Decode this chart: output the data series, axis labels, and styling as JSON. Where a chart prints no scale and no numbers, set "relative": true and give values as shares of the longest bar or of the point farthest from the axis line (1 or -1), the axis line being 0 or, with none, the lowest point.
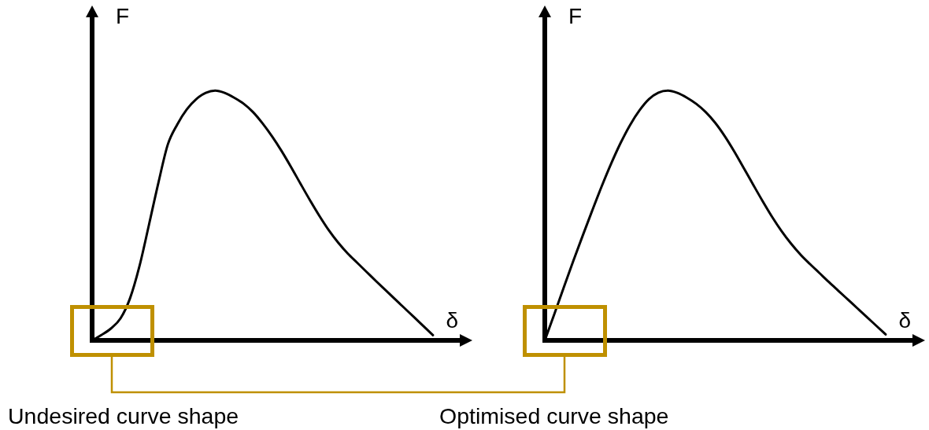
{
  "chart_data": [
    {
      "type": "line",
      "relative": true,
      "xlabel": "δ",
      "ylabel": "F",
      "tick_labels": false,
      "marker": "none",
      "line_style": "solid",
      "annotations": [
        "Undesired curve shape"
      ],
      "categories": [
        null,
        null,
        null,
        null,
        null,
        null,
        null,
        null,
        null,
        null,
        null,
        null,
        null,
        null,
        null,
        null,
        null,
        null,
        null,
        null,
        null,
        null,
        null,
        null,
        null,
        null,
        null,
        null,
        null,
        null,
        null,
        null,
        null,
        null,
        null,
        null,
        null,
        null,
        null,
        null
      ],
      "series": [
        {
          "color": "#000000",
          "values": [
            0,
            0.022,
            0.048,
            0.088,
            0.168,
            0.297,
            0.462,
            0.631,
            0.785,
            0.865,
            0.925,
            0.966,
            0.991,
            1,
            0.991,
            0.972,
            0.948,
            0.914,
            0.869,
            0.817,
            0.759,
            0.695,
            0.628,
            0.562,
            0.499,
            0.441,
            0.391,
            0.348,
            0.311,
            0.274,
            0.237,
            0.201,
            0.165,
            0.129,
            0.093,
            0.057,
            0.021,
            null,
            null,
            null
          ]
        }
      ]
    },
    {
      "type": "line",
      "relative": true,
      "xlabel": "δ",
      "ylabel": "F",
      "tick_labels": false,
      "marker": "none",
      "line_style": "solid",
      "annotations": [
        "Optimised curve shape"
      ],
      "categories": [
        null,
        null,
        null,
        null,
        null,
        null,
        null,
        null,
        null,
        null,
        null,
        null,
        null,
        null,
        null,
        null,
        null,
        null,
        null,
        null,
        null,
        null,
        null,
        null,
        null,
        null,
        null,
        null,
        null,
        null,
        null,
        null,
        null,
        null,
        null,
        null,
        null,
        null,
        null,
        null
      ],
      "series": [
        {
          "color": "#000000",
          "values": [
            0,
            0.105,
            0.212,
            0.317,
            0.419,
            0.519,
            0.616,
            0.707,
            0.79,
            0.862,
            0.921,
            0.966,
            0.992,
            1,
            0.991,
            0.972,
            0.947,
            0.914,
            0.871,
            0.818,
            0.757,
            0.691,
            0.624,
            0.558,
            0.495,
            0.438,
            0.388,
            0.344,
            0.306,
            0.27,
            0.234,
            0.199,
            0.164,
            0.129,
            0.094,
            0.059,
            0.024,
            null,
            null,
            null
          ]
        }
      ]
    }
  ]
}
